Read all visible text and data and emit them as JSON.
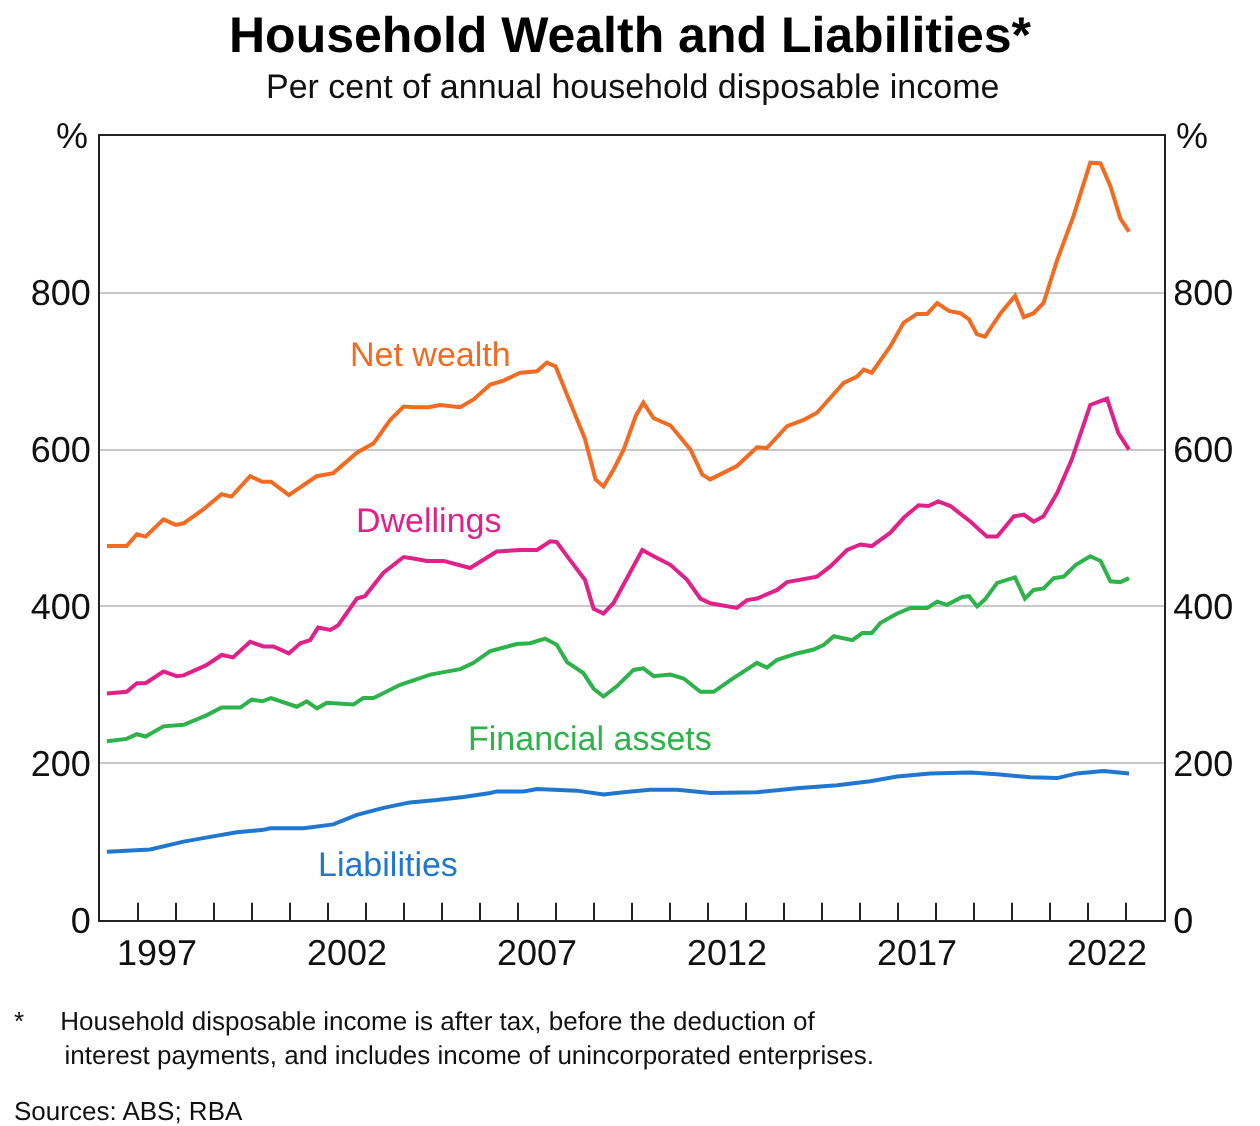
{
  "chart_data": {
    "type": "line",
    "title": "Household Wealth and Liabilities*",
    "subtitle": "Per cent of annual household disposable income",
    "ylabel": "%",
    "y2label": "%",
    "xlim": [
      1996,
      2024
    ],
    "ylim": [
      0,
      1000
    ],
    "y2lim": [
      0,
      1000
    ],
    "yticks": [
      0,
      200,
      400,
      600,
      800
    ],
    "y2ticks": [
      0,
      200,
      400,
      600,
      800
    ],
    "xticks": [
      {
        "value": 1997,
        "label": null
      },
      {
        "value": 1997.5,
        "label": "1997"
      },
      {
        "value": 1998,
        "label": null
      },
      {
        "value": 1999,
        "label": null
      },
      {
        "value": 2000,
        "label": null
      },
      {
        "value": 2001,
        "label": null
      },
      {
        "value": 2002,
        "label": null
      },
      {
        "value": 2002.5,
        "label": "2002"
      },
      {
        "value": 2003,
        "label": null
      },
      {
        "value": 2004,
        "label": null
      },
      {
        "value": 2005,
        "label": null
      },
      {
        "value": 2006,
        "label": null
      },
      {
        "value": 2007,
        "label": null
      },
      {
        "value": 2007.5,
        "label": "2007"
      },
      {
        "value": 2008,
        "label": null
      },
      {
        "value": 2009,
        "label": null
      },
      {
        "value": 2010,
        "label": null
      },
      {
        "value": 2011,
        "label": null
      },
      {
        "value": 2012,
        "label": null
      },
      {
        "value": 2012.5,
        "label": "2012"
      },
      {
        "value": 2013,
        "label": null
      },
      {
        "value": 2014,
        "label": null
      },
      {
        "value": 2015,
        "label": null
      },
      {
        "value": 2016,
        "label": null
      },
      {
        "value": 2017,
        "label": null
      },
      {
        "value": 2017.5,
        "label": "2017"
      },
      {
        "value": 2018,
        "label": null
      },
      {
        "value": 2019,
        "label": null
      },
      {
        "value": 2020,
        "label": null
      },
      {
        "value": 2021,
        "label": null
      },
      {
        "value": 2022,
        "label": null
      },
      {
        "value": 2022.5,
        "label": "2022"
      },
      {
        "value": 2023,
        "label": null
      }
    ],
    "grid": "y",
    "legend": false,
    "marker": "none",
    "line_style": "solid",
    "annotations": [
      "*\tHousehold disposable income is after tax, before the deduction of\ninterest payments, and includes income of unincorporated enterprises.",
      "Sources: ABS; RBA"
    ],
    "series": [
      {
        "name": "Net wealth",
        "color": "#f26b21",
        "x": [
          1996.18,
          1996.7,
          1996.97,
          1997.2,
          1997.67,
          1997.99,
          1998.2,
          1998.7,
          1999.2,
          1999.46,
          1999.95,
          2000.27,
          2000.5,
          2000.97,
          2001.7,
          2002.14,
          2002.76,
          2003.2,
          2003.64,
          2003.99,
          2004.25,
          2004.65,
          2004.95,
          2005.48,
          2005.83,
          2006.27,
          2006.62,
          2007.06,
          2007.5,
          2007.76,
          2007.99,
          2008.34,
          2008.76,
          2009.04,
          2009.25,
          2009.51,
          2009.78,
          2010.1,
          2010.3,
          2010.57,
          2011.01,
          2011.54,
          2011.85,
          2012.06,
          2012.76,
          2013.29,
          2013.55,
          2014.08,
          2014.52,
          2014.87,
          2015.57,
          2015.92,
          2016.1,
          2016.31,
          2016.8,
          2017.15,
          2017.5,
          2017.77,
          2018.03,
          2018.34,
          2018.64,
          2018.87,
          2019.08,
          2019.29,
          2019.7,
          2020.08,
          2020.31,
          2020.57,
          2020.83,
          2021.19,
          2021.62,
          2022.06,
          2022.33,
          2022.59,
          2022.85,
          2023.08
        ],
        "values": [
          477,
          477,
          492,
          489,
          511,
          504,
          506,
          523,
          543,
          540,
          566,
          559,
          559,
          542,
          566,
          570,
          596,
          608,
          638,
          655,
          654,
          654,
          657,
          654,
          664,
          683,
          688,
          698,
          700,
          711,
          706,
          664,
          614,
          562,
          553,
          574,
          600,
          643,
          660,
          640,
          631,
          600,
          568,
          562,
          579,
          603,
          602,
          630,
          638,
          647,
          685,
          693,
          702,
          698,
          732,
          762,
          773,
          773,
          787,
          777,
          774,
          766,
          747,
          744,
          774,
          796,
          769,
          774,
          787,
          842,
          898,
          966,
          965,
          936,
          895,
          878
        ]
      },
      {
        "name": "Dwellings",
        "color": "#e0218a",
        "x": [
          1996.18,
          1996.7,
          1996.97,
          1997.2,
          1997.67,
          1998.02,
          1998.2,
          1998.8,
          1999.2,
          1999.5,
          1999.95,
          2000.3,
          2000.56,
          2000.97,
          2001.27,
          2001.53,
          2001.74,
          2002.06,
          2002.27,
          2002.76,
          2002.97,
          2003.46,
          2003.99,
          2004.25,
          2004.6,
          2005.04,
          2005.74,
          2006.44,
          2007.06,
          2007.5,
          2007.85,
          2008.02,
          2008.37,
          2008.76,
          2008.99,
          2009.25,
          2009.51,
          2010.27,
          2010.57,
          2011.01,
          2011.45,
          2011.8,
          2012.06,
          2012.76,
          2013.03,
          2013.29,
          2013.82,
          2014.08,
          2014.87,
          2015.22,
          2015.66,
          2016.01,
          2016.31,
          2016.8,
          2017.15,
          2017.54,
          2017.8,
          2018.06,
          2018.38,
          2018.91,
          2019.34,
          2019.61,
          2020.05,
          2020.31,
          2020.57,
          2020.83,
          2021.19,
          2021.57,
          2022.06,
          2022.5,
          2022.8,
          2023.08
        ],
        "values": [
          289,
          291,
          302,
          302,
          317,
          311,
          312,
          325,
          338,
          335,
          355,
          349,
          349,
          340,
          353,
          357,
          373,
          370,
          376,
          410,
          413,
          443,
          463,
          461,
          458,
          458,
          449,
          470,
          472,
          472,
          483,
          482,
          459,
          434,
          397,
          391,
          404,
          472,
          464,
          453,
          434,
          410,
          404,
          398,
          408,
          410,
          421,
          431,
          438,
          451,
          472,
          479,
          477,
          494,
          513,
          529,
          528,
          534,
          528,
          508,
          489,
          489,
          515,
          517,
          508,
          515,
          545,
          587,
          657,
          665,
          621,
          600
        ]
      },
      {
        "name": "Financial assets",
        "color": "#2db34a",
        "x": [
          1996.18,
          1996.7,
          1996.97,
          1997.2,
          1997.67,
          1998.2,
          1998.8,
          1999.2,
          1999.69,
          1999.99,
          2000.27,
          2000.5,
          2001.18,
          2001.44,
          2001.71,
          2001.97,
          2002.67,
          2002.93,
          2003.2,
          2003.9,
          2004.69,
          2005.48,
          2005.83,
          2006.27,
          2006.97,
          2007.32,
          2007.71,
          2008.02,
          2008.29,
          2008.72,
          2008.99,
          2009.25,
          2009.6,
          2010.04,
          2010.3,
          2010.57,
          2011.01,
          2011.36,
          2011.8,
          2012.15,
          2012.59,
          2013.29,
          2013.55,
          2013.82,
          2014.34,
          2014.78,
          2015.05,
          2015.31,
          2015.8,
          2016.06,
          2016.31,
          2016.54,
          2016.98,
          2017.33,
          2017.77,
          2018.03,
          2018.29,
          2018.69,
          2018.87,
          2019.08,
          2019.29,
          2019.61,
          2020.08,
          2020.34,
          2020.57,
          2020.83,
          2021.1,
          2021.36,
          2021.68,
          2022.06,
          2022.33,
          2022.59,
          2022.85,
          2023.08
        ],
        "values": [
          228,
          231,
          237,
          234,
          247,
          249,
          261,
          271,
          271,
          281,
          279,
          283,
          272,
          279,
          270,
          277,
          275,
          283,
          283,
          300,
          313,
          320,
          328,
          343,
          352,
          353,
          359,
          351,
          329,
          315,
          295,
          285,
          298,
          319,
          321,
          311,
          313,
          308,
          291,
          291,
          306,
          328,
          322,
          332,
          340,
          345,
          351,
          362,
          357,
          366,
          366,
          379,
          391,
          398,
          398,
          406,
          402,
          412,
          413,
          400,
          409,
          430,
          437,
          410,
          421,
          423,
          436,
          438,
          453,
          464,
          458,
          432,
          431,
          436
        ]
      },
      {
        "name": "Liabilities",
        "color": "#1f77d0",
        "x": [
          1996.18,
          1997.32,
          1998.2,
          1998.9,
          1999.6,
          2000.3,
          2000.48,
          2001.36,
          2002.14,
          2002.76,
          2003.46,
          2004.16,
          2004.86,
          2005.57,
          2006.27,
          2006.44,
          2007.15,
          2007.5,
          2008.55,
          2009.25,
          2009.78,
          2010.48,
          2011.19,
          2012.06,
          2013.29,
          2014.34,
          2015.4,
          2016.27,
          2016.98,
          2017.85,
          2018.91,
          2019.61,
          2020.48,
          2021.19,
          2021.71,
          2022.41,
          2023.08
        ],
        "values": [
          87,
          90,
          100,
          106,
          112,
          115,
          117,
          117,
          122,
          134,
          143,
          150,
          153,
          157,
          162,
          164,
          164,
          167,
          165,
          160,
          163,
          166,
          166,
          162,
          163,
          168,
          172,
          177,
          183,
          187,
          188,
          186,
          182,
          181,
          187,
          190,
          187
        ]
      }
    ]
  }
}
